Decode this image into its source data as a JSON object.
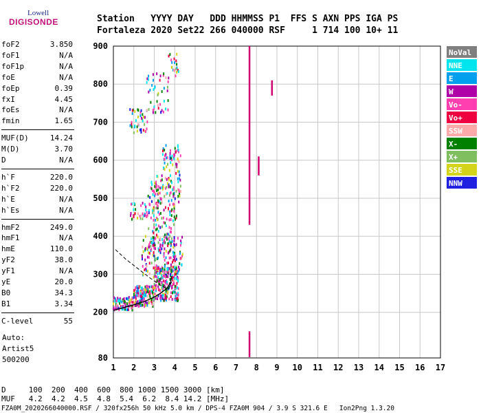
{
  "logo": {
    "top": "Lowell",
    "bottom": "DIGISONDE"
  },
  "header": {
    "line1": "Station   YYYY DAY   DDD HHMMSS P1  FFS S AXN PPS IGA PS",
    "line2": "Fortaleza 2020 Set22 266 040000 RSF     1 714 100 10+ 11"
  },
  "params_group1": [
    {
      "label": "foF2",
      "value": "3.850"
    },
    {
      "label": "foF1",
      "value": "N/A"
    },
    {
      "label": "foF1p",
      "value": "N/A"
    },
    {
      "label": "foE",
      "value": "N/A"
    },
    {
      "label": "foEp",
      "value": "0.39"
    },
    {
      "label": "fxI",
      "value": "4.45"
    },
    {
      "label": "foEs",
      "value": "N/A"
    },
    {
      "label": "fmin",
      "value": "1.65"
    }
  ],
  "params_group2": [
    {
      "label": "MUF(D)",
      "value": "14.24"
    },
    {
      "label": "M(D)",
      "value": "3.70"
    },
    {
      "label": "D",
      "value": "N/A"
    }
  ],
  "params_group3": [
    {
      "label": "h`F",
      "value": "220.0"
    },
    {
      "label": "h`F2",
      "value": "220.0"
    },
    {
      "label": "h`E",
      "value": "N/A"
    },
    {
      "label": "h`Es",
      "value": "N/A"
    }
  ],
  "params_group4": [
    {
      "label": "hmF2",
      "value": "249.0"
    },
    {
      "label": "hmF1",
      "value": "N/A"
    },
    {
      "label": "hmE",
      "value": "110.0"
    },
    {
      "label": "yF2",
      "value": "38.0"
    },
    {
      "label": "yF1",
      "value": "N/A"
    },
    {
      "label": "yE",
      "value": "20.0"
    },
    {
      "label": "B0",
      "value": "34.3"
    },
    {
      "label": "B1",
      "value": "3.34"
    }
  ],
  "params_group5": [
    {
      "label": "C-level",
      "value": "55"
    }
  ],
  "info": {
    "line1": "Auto:",
    "line2": "Artist5",
    "line3": "500200"
  },
  "bottom_table": {
    "row1": "D     100  200  400  600  800 1000 1500 3000 [km]",
    "row2": "MUF   4.2  4.2  4.5  4.8  5.4  6.2  8.4 14.2 [MHz]"
  },
  "footer": "FZA0M_2020266040000.RSF / 320fx256h 50 kHz 5.0 km / DPS-4 FZA0M 904 / 3.9 S 321.6 E   Ion2Png 1.3.20",
  "legend": [
    {
      "label": "NoVal",
      "color": "#7f7f7f"
    },
    {
      "label": "NNE",
      "color": "#00e5ee"
    },
    {
      "label": "E",
      "color": "#00a0ee"
    },
    {
      "label": "W",
      "color": "#b000a8"
    },
    {
      "label": "Vo-",
      "color": "#ff3fb0"
    },
    {
      "label": "Vo+",
      "color": "#ee0040"
    },
    {
      "label": "SSW",
      "color": "#ffaaaa"
    },
    {
      "label": "X-",
      "color": "#008000"
    },
    {
      "label": "X+",
      "color": "#7fbf5f"
    },
    {
      "label": "SSE",
      "color": "#d4d41a"
    },
    {
      "label": "NNW",
      "color": "#2020e0"
    }
  ],
  "chart_data": {
    "type": "scatter",
    "xlabel": "",
    "ylabel": "",
    "xlim": [
      1,
      17
    ],
    "ylim": [
      80,
      900
    ],
    "x_ticks": [
      1,
      2,
      3,
      4,
      5,
      6,
      7,
      8,
      9,
      10,
      11,
      12,
      13,
      14,
      15,
      16,
      17
    ],
    "y_ticks": [
      80,
      200,
      300,
      400,
      500,
      600,
      700,
      800,
      900
    ],
    "grid": true,
    "clusters": [
      {
        "x0": 1.0,
        "x1": 2.0,
        "y0": 205,
        "y1": 240,
        "n": 90
      },
      {
        "x0": 2.0,
        "x1": 3.0,
        "y0": 215,
        "y1": 270,
        "n": 160
      },
      {
        "x0": 3.0,
        "x1": 4.2,
        "y0": 230,
        "y1": 320,
        "n": 220
      },
      {
        "x0": 2.4,
        "x1": 4.4,
        "y0": 290,
        "y1": 400,
        "n": 170
      },
      {
        "x0": 2.7,
        "x1": 4.0,
        "y0": 370,
        "y1": 440,
        "n": 50
      },
      {
        "x0": 1.8,
        "x1": 4.1,
        "y0": 440,
        "y1": 490,
        "n": 90
      },
      {
        "x0": 2.7,
        "x1": 4.3,
        "y0": 490,
        "y1": 560,
        "n": 90
      },
      {
        "x0": 3.4,
        "x1": 4.3,
        "y0": 560,
        "y1": 640,
        "n": 55
      },
      {
        "x0": 1.8,
        "x1": 2.7,
        "y0": 670,
        "y1": 740,
        "n": 40
      },
      {
        "x0": 2.6,
        "x1": 3.7,
        "y0": 720,
        "y1": 830,
        "n": 45
      },
      {
        "x0": 3.7,
        "x1": 4.2,
        "y0": 820,
        "y1": 880,
        "n": 20
      }
    ],
    "spikes": [
      {
        "x": 7.65,
        "y0": 430,
        "y1": 900
      },
      {
        "x": 7.65,
        "y0": 82,
        "y1": 150
      },
      {
        "x": 8.1,
        "y0": 560,
        "y1": 610
      },
      {
        "x": 8.75,
        "y0": 770,
        "y1": 810
      }
    ],
    "profile_curve": {
      "x": [
        1.0,
        1.5,
        2.0,
        2.5,
        3.0,
        3.3,
        3.6,
        3.8,
        3.85
      ],
      "y": [
        205,
        212,
        220,
        228,
        240,
        250,
        262,
        278,
        295
      ]
    },
    "dashed_curve": {
      "x": [
        1.1,
        1.6,
        2.2,
        2.8,
        3.2,
        3.5,
        3.7,
        3.85
      ],
      "y": [
        365,
        340,
        315,
        290,
        275,
        265,
        262,
        280
      ]
    }
  }
}
